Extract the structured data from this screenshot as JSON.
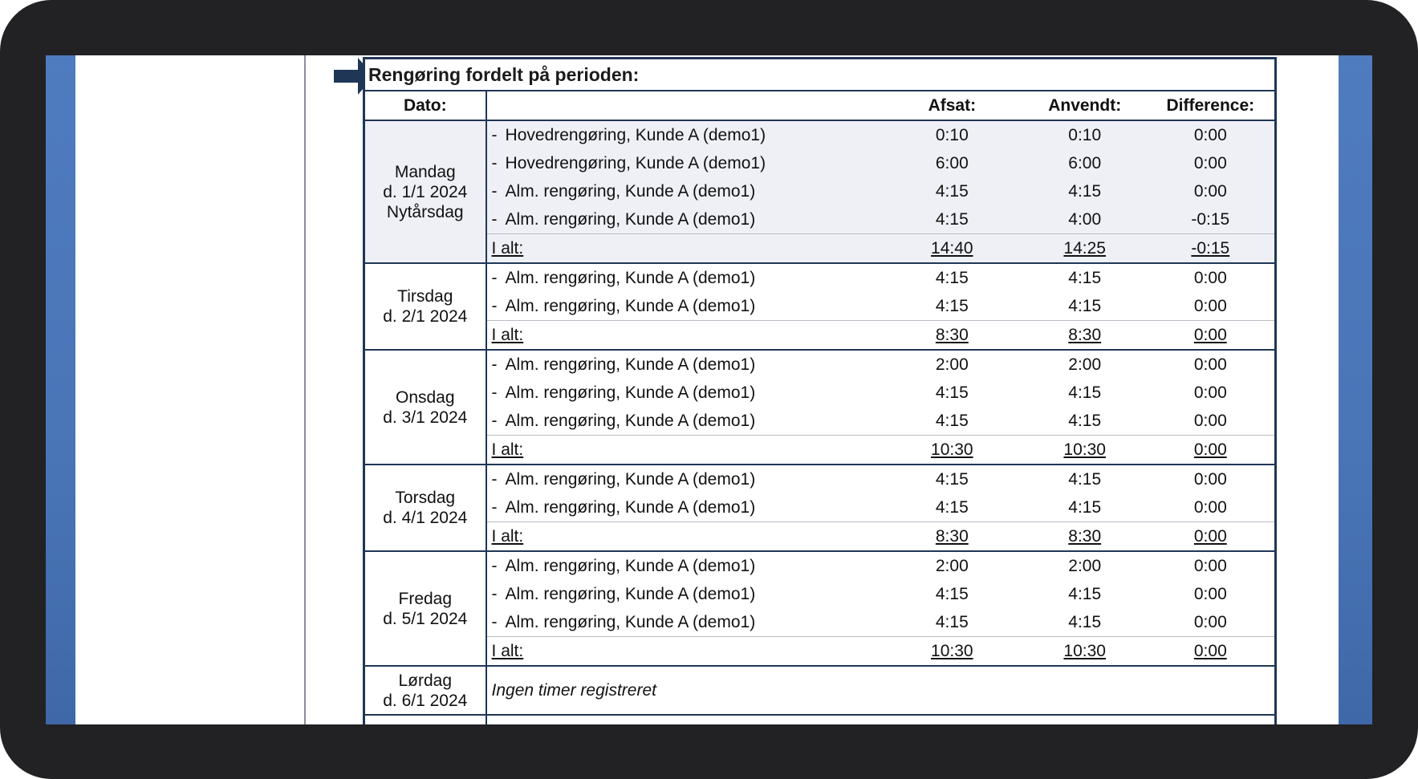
{
  "panel": {
    "title": "Rengøring fordelt på perioden:"
  },
  "headers": {
    "date": "Dato:",
    "desc": "",
    "set": "Afsat:",
    "used": "Anvendt:",
    "diff": "Difference:"
  },
  "days": [
    {
      "weekday": "Mandag",
      "date": "d. 1/1 2024",
      "note": "Nytårsdag",
      "rows": [
        {
          "desc": "Hovedrengøring, Kunde A (demo1)",
          "set": "0:10",
          "used": "0:10",
          "diff": "0:00"
        },
        {
          "desc": "Hovedrengøring, Kunde A (demo1)",
          "set": "6:00",
          "used": "6:00",
          "diff": "0:00"
        },
        {
          "desc": "Alm. rengøring, Kunde A (demo1)",
          "set": "4:15",
          "used": "4:15",
          "diff": "0:00"
        },
        {
          "desc": "Alm. rengøring, Kunde A (demo1)",
          "set": "4:15",
          "used": "4:00",
          "diff": "-0:15"
        }
      ],
      "total": {
        "label": "I alt:",
        "set": "14:40",
        "used": "14:25",
        "diff": "-0:15"
      }
    },
    {
      "weekday": "Tirsdag",
      "date": "d. 2/1 2024",
      "note": "",
      "rows": [
        {
          "desc": "Alm. rengøring, Kunde A (demo1)",
          "set": "4:15",
          "used": "4:15",
          "diff": "0:00"
        },
        {
          "desc": "Alm. rengøring, Kunde A (demo1)",
          "set": "4:15",
          "used": "4:15",
          "diff": "0:00"
        }
      ],
      "total": {
        "label": "I alt:",
        "set": "8:30",
        "used": "8:30",
        "diff": "0:00"
      }
    },
    {
      "weekday": "Onsdag",
      "date": "d. 3/1 2024",
      "note": "",
      "rows": [
        {
          "desc": "Alm. rengøring, Kunde A (demo1)",
          "set": "2:00",
          "used": "2:00",
          "diff": "0:00"
        },
        {
          "desc": "Alm. rengøring, Kunde A (demo1)",
          "set": "4:15",
          "used": "4:15",
          "diff": "0:00"
        },
        {
          "desc": "Alm. rengøring, Kunde A (demo1)",
          "set": "4:15",
          "used": "4:15",
          "diff": "0:00"
        }
      ],
      "total": {
        "label": "I alt:",
        "set": "10:30",
        "used": "10:30",
        "diff": "0:00"
      }
    },
    {
      "weekday": "Torsdag",
      "date": "d. 4/1 2024",
      "note": "",
      "rows": [
        {
          "desc": "Alm. rengøring, Kunde A (demo1)",
          "set": "4:15",
          "used": "4:15",
          "diff": "0:00"
        },
        {
          "desc": "Alm. rengøring, Kunde A (demo1)",
          "set": "4:15",
          "used": "4:15",
          "diff": "0:00"
        }
      ],
      "total": {
        "label": "I alt:",
        "set": "8:30",
        "used": "8:30",
        "diff": "0:00"
      }
    },
    {
      "weekday": "Fredag",
      "date": "d. 5/1 2024",
      "note": "",
      "rows": [
        {
          "desc": "Alm. rengøring, Kunde A (demo1)",
          "set": "2:00",
          "used": "2:00",
          "diff": "0:00"
        },
        {
          "desc": "Alm. rengøring, Kunde A (demo1)",
          "set": "4:15",
          "used": "4:15",
          "diff": "0:00"
        },
        {
          "desc": "Alm. rengøring, Kunde A (demo1)",
          "set": "4:15",
          "used": "4:15",
          "diff": "0:00"
        }
      ],
      "total": {
        "label": "I alt:",
        "set": "10:30",
        "used": "10:30",
        "diff": "0:00"
      }
    },
    {
      "weekday": "Lørdag",
      "date": "d. 6/1 2024",
      "note": "",
      "empty": "Ingen timer registreret"
    }
  ],
  "colors": {
    "border": "#1f3656",
    "highlight_row_bg": "#eff0f6",
    "arrow": "#1f3656"
  }
}
